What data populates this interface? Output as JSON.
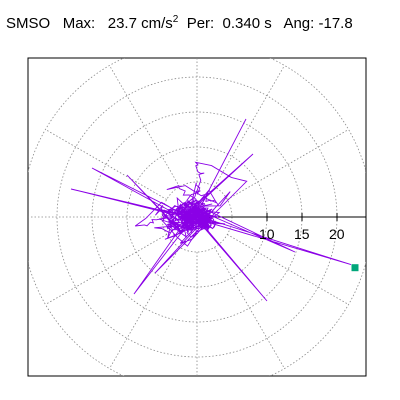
{
  "header": {
    "station": "SMSO",
    "max_label": "Max:",
    "max_value": "23.7",
    "max_unit": "cm/s",
    "max_exp": "2",
    "per_label": "Per:",
    "per_value": "0.340 s",
    "ang_label": "Ang:",
    "ang_value": "-17.8"
  },
  "chart_data": {
    "type": "scatter",
    "description_kind": "polar particle-motion trace",
    "rings": [
      5,
      10,
      15,
      20,
      25
    ],
    "tick_labels": [
      "10",
      "15",
      "20"
    ],
    "spokes_deg": [
      0,
      30,
      60,
      90,
      120,
      150,
      180,
      210,
      240,
      270,
      300,
      330
    ],
    "max_amplitude": 23.7,
    "angle_deg": -17.8,
    "grid": true,
    "colors": {
      "trace": "#8a00e6",
      "marker": "#00a67a",
      "grid": "#888888",
      "axis": "#000000"
    }
  }
}
